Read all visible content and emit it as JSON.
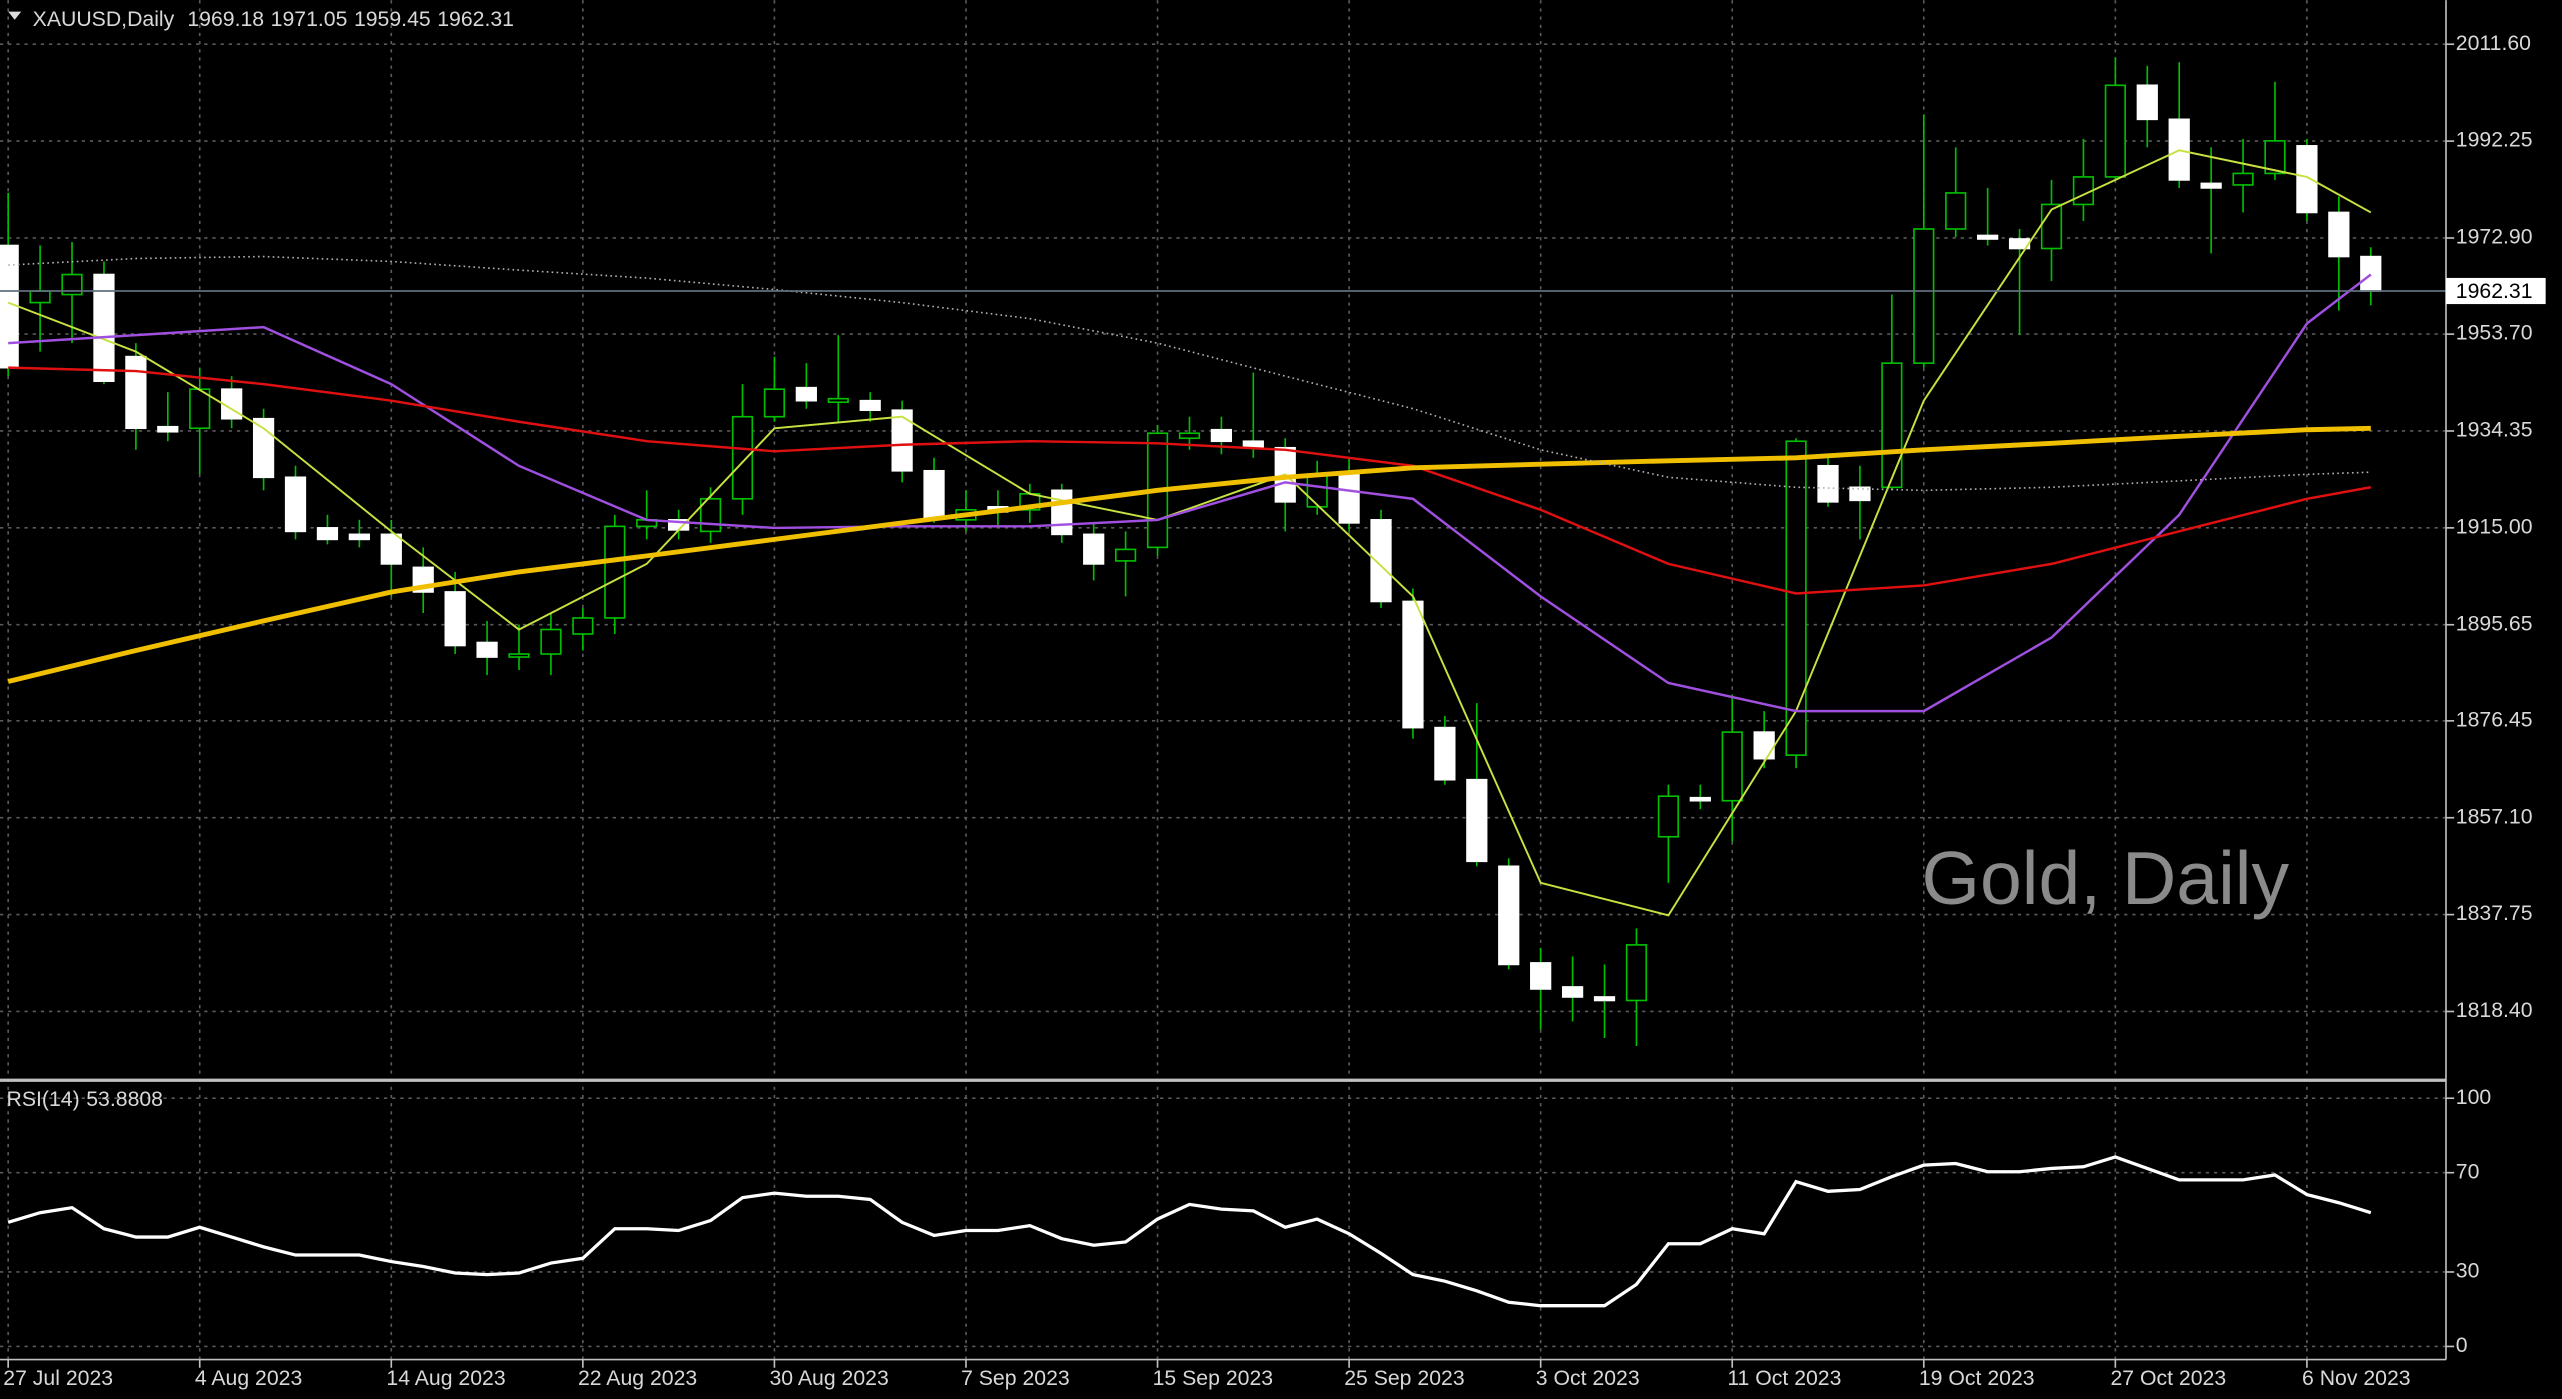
{
  "chart_data": [
    {
      "type": "candlestick",
      "title": "XAUUSD,Daily",
      "watermark": "Gold, Daily",
      "categories": [
        "27 Jul 2023",
        null,
        null,
        null,
        null,
        null,
        "4 Aug 2023",
        null,
        null,
        null,
        null,
        null,
        "14 Aug 2023",
        null,
        null,
        null,
        null,
        null,
        "22 Aug 2023",
        null,
        null,
        null,
        null,
        null,
        "30 Aug 2023",
        null,
        null,
        null,
        null,
        null,
        "7 Sep 2023",
        null,
        null,
        null,
        null,
        null,
        "15 Sep 2023",
        null,
        null,
        null,
        null,
        null,
        "25 Sep 2023",
        null,
        null,
        null,
        null,
        null,
        "3 Oct 2023",
        null,
        null,
        null,
        null,
        null,
        "11 Oct 2023",
        null,
        null,
        null,
        null,
        null,
        "19 Oct 2023",
        null,
        null,
        null,
        null,
        null,
        "27 Oct 2023",
        null,
        null,
        null,
        null,
        null,
        "6 Nov 2023",
        null,
        null
      ],
      "open": [
        1971.4,
        1960.0,
        1961.6,
        1965.6,
        1949.2,
        1935.2,
        1934.9,
        1942.7,
        1936.8,
        1925.1,
        1915.0,
        1913.7,
        1913.7,
        1907.1,
        1902.2,
        1892.1,
        1889.2,
        1889.8,
        1893.8,
        1897.0,
        1915.3,
        1916.6,
        1914.3,
        1920.8,
        1937.2,
        1943.0,
        1940.1,
        1940.4,
        1938.5,
        1926.4,
        1916.6,
        1919.2,
        1918.6,
        1922.5,
        1913.7,
        1908.4,
        1911.1,
        1932.9,
        1934.6,
        1932.3,
        1931.0,
        1919.2,
        1925.7,
        1916.6,
        1900.3,
        1875.1,
        1864.7,
        1847.4,
        1828.1,
        1823.3,
        1821.3,
        1820.6,
        1853.3,
        1861.1,
        1860.5,
        1874.2,
        1869.6,
        1927.4,
        1923.1,
        1923.1,
        1947.9,
        1974.7,
        1973.4,
        1972.7,
        1970.8,
        1979.6,
        1985.1,
        2003.4,
        1996.6,
        1983.8,
        1983.5,
        1985.8,
        1991.3,
        1978.0,
        1969.18
      ],
      "high": [
        1981.9,
        1971.4,
        1972.1,
        1968.2,
        1951.9,
        1942.1,
        1947.0,
        1945.3,
        1938.8,
        1927.4,
        1917.6,
        1916.6,
        1916.6,
        1911.1,
        1906.2,
        1896.4,
        1895.7,
        1898.0,
        1899.0,
        1917.6,
        1922.5,
        1918.6,
        1923.1,
        1943.7,
        1949.2,
        1947.9,
        1953.5,
        1942.1,
        1940.4,
        1929.0,
        1922.5,
        1922.5,
        1923.8,
        1923.8,
        1916.0,
        1914.3,
        1935.5,
        1937.2,
        1937.2,
        1946.0,
        1932.9,
        1928.4,
        1929.0,
        1918.6,
        1902.9,
        1877.4,
        1880.0,
        1849.0,
        1831.1,
        1829.4,
        1827.8,
        1835.0,
        1863.7,
        1863.7,
        1881.7,
        1878.4,
        1932.9,
        1929.0,
        1927.4,
        1961.6,
        1997.6,
        1991.0,
        1982.9,
        1974.7,
        1984.5,
        1992.7,
        2009.0,
        2007.3,
        2008.0,
        1991.0,
        1992.7,
        2004.1,
        1992.7,
        1981.2,
        1971.05
      ],
      "low": [
        1945.3,
        1950.2,
        1951.9,
        1943.7,
        1930.6,
        1932.3,
        1925.7,
        1934.9,
        1922.5,
        1912.7,
        1911.7,
        1911.1,
        1901.3,
        1898.0,
        1889.8,
        1885.6,
        1886.6,
        1885.6,
        1890.5,
        1893.8,
        1912.7,
        1912.7,
        1912.0,
        1917.6,
        1936.2,
        1938.8,
        1936.2,
        1936.2,
        1924.1,
        1916.0,
        1914.3,
        1915.3,
        1916.0,
        1912.0,
        1904.5,
        1901.3,
        1909.4,
        1930.6,
        1929.7,
        1929.0,
        1914.3,
        1917.6,
        1914.3,
        1899.0,
        1872.9,
        1863.7,
        1847.4,
        1826.8,
        1814.8,
        1816.4,
        1813.1,
        1811.5,
        1844.1,
        1858.8,
        1852.3,
        1867.0,
        1867.0,
        1919.2,
        1912.7,
        1922.5,
        1947.0,
        1973.1,
        1971.4,
        1953.5,
        1964.3,
        1976.3,
        1984.5,
        1991.0,
        1982.9,
        1969.8,
        1978.0,
        1984.5,
        1976.3,
        1958.4,
        1959.45
      ],
      "close": [
        1947.0,
        1962.3,
        1965.6,
        1944.3,
        1934.9,
        1934.2,
        1942.7,
        1936.8,
        1925.1,
        1914.3,
        1912.7,
        1912.7,
        1907.8,
        1902.2,
        1891.5,
        1889.2,
        1889.8,
        1894.7,
        1897.0,
        1915.3,
        1916.6,
        1914.6,
        1920.8,
        1937.2,
        1942.7,
        1940.4,
        1940.8,
        1938.5,
        1926.4,
        1916.9,
        1918.6,
        1918.2,
        1921.8,
        1913.7,
        1907.8,
        1910.7,
        1933.9,
        1933.9,
        1932.3,
        1931.0,
        1920.2,
        1925.7,
        1916.0,
        1900.3,
        1875.1,
        1864.7,
        1848.4,
        1827.8,
        1822.9,
        1821.3,
        1820.6,
        1831.7,
        1861.4,
        1860.5,
        1874.2,
        1868.9,
        1932.3,
        1920.2,
        1920.5,
        1947.9,
        1974.7,
        1981.9,
        1972.7,
        1970.8,
        1979.6,
        1985.1,
        2003.4,
        1996.6,
        1984.5,
        1982.9,
        1985.8,
        1992.3,
        1978.0,
        1969.2,
        1962.31
      ],
      "up_color": "#00c000",
      "down_color": "#ffffff",
      "wick_color": "#00c000",
      "ylim": [
        1805,
        2020.4
      ],
      "yticks": [
        {
          "value": 2011.6,
          "label": "2011.60"
        },
        {
          "value": 1992.25,
          "label": "1992.25"
        },
        {
          "value": 1972.9,
          "label": "1972.90"
        },
        {
          "value": 1953.7,
          "label": "1953.70"
        },
        {
          "value": 1934.35,
          "label": "1934.35"
        },
        {
          "value": 1915,
          "label": "1915.00"
        },
        {
          "value": 1895.65,
          "label": "1895.65"
        },
        {
          "value": 1876.45,
          "label": "1876.45"
        },
        {
          "value": 1857.1,
          "label": "1857.10"
        },
        {
          "value": 1837.75,
          "label": "1837.75"
        },
        {
          "value": 1818.4,
          "label": "1818.40"
        }
      ],
      "grid": true,
      "lines": [
        {
          "color": "#c8e040",
          "style": "thin",
          "x": [
            0,
            4,
            8,
            12,
            16,
            20,
            24,
            28,
            32,
            36,
            40,
            44,
            48,
            52,
            56,
            60,
            64,
            68,
            72,
            74
          ],
          "values": [
            1960.0,
            1950.2,
            1934.9,
            1914.3,
            1894.7,
            1907.8,
            1934.9,
            1937.2,
            1921.8,
            1916.6,
            1925.7,
            1901.3,
            1844.1,
            1837.6,
            1878.4,
            1940.4,
            1978.6,
            1990.4,
            1985.1,
            1978.0
          ]
        },
        {
          "color": "#a050e0",
          "style": "normal",
          "x": [
            0,
            4,
            8,
            12,
            16,
            20,
            24,
            28,
            32,
            36,
            40,
            44,
            48,
            52,
            56,
            60,
            64,
            68,
            72,
            74
          ],
          "values": [
            1951.9,
            1953.5,
            1955.1,
            1943.7,
            1927.4,
            1916.6,
            1915.0,
            1915.3,
            1915.3,
            1916.6,
            1924.1,
            1920.8,
            1901.3,
            1884.0,
            1878.4,
            1878.4,
            1893.1,
            1917.6,
            1955.8,
            1965.6
          ]
        },
        {
          "color": "#e01010",
          "style": "normal",
          "x": [
            0,
            4,
            8,
            12,
            16,
            20,
            24,
            28,
            32,
            36,
            40,
            44,
            48,
            52,
            56,
            60,
            64,
            68,
            72,
            74
          ],
          "values": [
            1947.0,
            1946.3,
            1943.7,
            1940.4,
            1936.2,
            1932.3,
            1930.3,
            1931.6,
            1932.3,
            1931.9,
            1930.6,
            1927.4,
            1918.6,
            1907.8,
            1901.9,
            1903.5,
            1907.8,
            1914.3,
            1920.8,
            1923.1
          ]
        },
        {
          "color": "#f0c000",
          "style": "thick",
          "x": [
            0,
            4,
            8,
            12,
            16,
            20,
            24,
            28,
            32,
            36,
            40,
            44,
            48,
            52,
            56,
            60,
            64,
            68,
            72,
            74
          ],
          "values": [
            1884.3,
            1890.5,
            1896.4,
            1902.2,
            1906.2,
            1909.4,
            1912.7,
            1916.0,
            1919.2,
            1922.5,
            1925.1,
            1927.0,
            1927.7,
            1928.4,
            1929.0,
            1930.6,
            1931.9,
            1933.3,
            1934.6,
            1934.9
          ]
        },
        {
          "color": "#b0b0b0",
          "style": "dotted",
          "x": [
            0,
            4,
            8,
            12,
            16,
            20,
            24,
            28,
            32,
            36,
            40,
            44,
            48,
            52,
            56,
            60,
            64,
            68,
            72,
            74
          ],
          "values": [
            1967.5,
            1968.8,
            1969.2,
            1968.2,
            1966.5,
            1964.9,
            1962.6,
            1960.0,
            1956.8,
            1951.9,
            1945.3,
            1938.8,
            1930.6,
            1925.1,
            1923.1,
            1922.5,
            1923.1,
            1924.4,
            1925.7,
            1926.1
          ]
        }
      ]
    },
    {
      "type": "line",
      "title": "RSI(14)",
      "color": "#ffffff",
      "values": [
        50.0,
        53.9,
        55.9,
        47.4,
        44.1,
        44.1,
        48.0,
        44.1,
        40.1,
        36.8,
        36.8,
        36.8,
        34.2,
        32.2,
        29.6,
        28.9,
        29.6,
        33.6,
        35.5,
        47.4,
        47.4,
        46.7,
        50.7,
        59.9,
        61.8,
        60.5,
        60.5,
        59.2,
        50.0,
        44.7,
        46.7,
        46.7,
        48.7,
        43.4,
        40.8,
        42.1,
        51.3,
        57.2,
        55.3,
        54.6,
        48.0,
        51.3,
        45.4,
        37.5,
        28.9,
        26.3,
        22.4,
        17.8,
        16.4,
        16.4,
        16.4,
        25.0,
        41.4,
        41.4,
        47.4,
        45.4,
        66.4,
        62.5,
        63.2,
        68.4,
        73.0,
        73.7,
        70.4,
        70.4,
        71.7,
        72.4,
        76.3,
        71.7,
        67.1,
        67.1,
        67.1,
        69.1,
        61.2,
        57.9,
        53.8808
      ],
      "ylim": [
        -5.3,
        106.6
      ],
      "yticks": [
        0,
        30,
        70,
        100
      ],
      "grid": true
    }
  ]
}
